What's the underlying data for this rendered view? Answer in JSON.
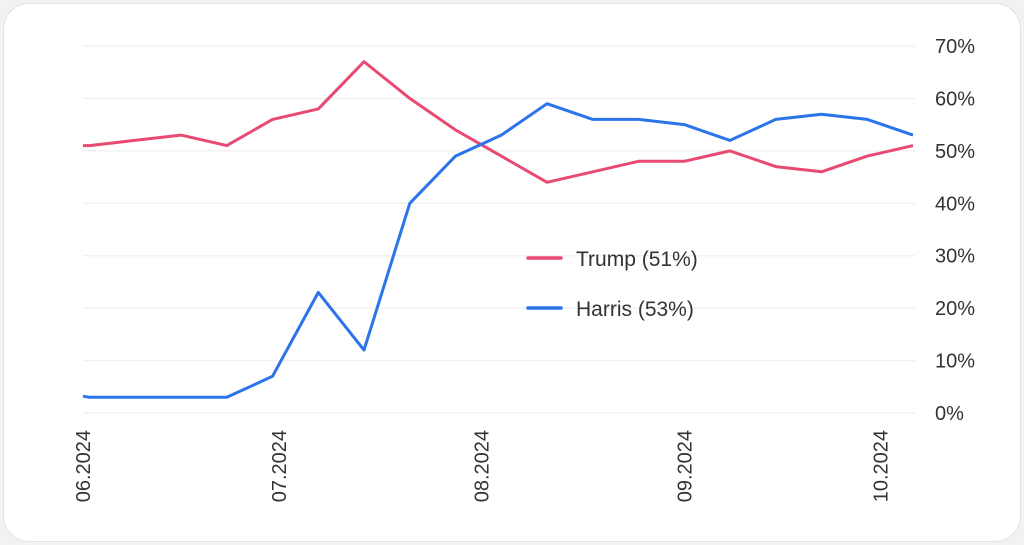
{
  "chart_data": {
    "type": "line",
    "title": "",
    "xlabel": "",
    "ylabel": "",
    "ylim": [
      0,
      70
    ],
    "y_ticks": [
      "0%",
      "10%",
      "20%",
      "30%",
      "40%",
      "50%",
      "60%",
      "70%"
    ],
    "y_tick_values": [
      0,
      10,
      20,
      30,
      40,
      50,
      60,
      70
    ],
    "x_ticks": [
      "06.2024",
      "07.2024",
      "08.2024",
      "09.2024",
      "10.2024"
    ],
    "x_tick_values": [
      "2024-06-01",
      "2024-07-01",
      "2024-08-01",
      "2024-09-01",
      "2024-10-01"
    ],
    "xlim": [
      "2024-06-01",
      "2024-10-06"
    ],
    "grid": true,
    "y_axis_side": "right",
    "legend_position": "center-right",
    "x": [
      "2024-06-01",
      "2024-06-02",
      "2024-06-16",
      "2024-06-23",
      "2024-06-30",
      "2024-07-07",
      "2024-07-14",
      "2024-07-21",
      "2024-07-28",
      "2024-08-04",
      "2024-08-11",
      "2024-08-18",
      "2024-08-25",
      "2024-09-01",
      "2024-09-08",
      "2024-09-15",
      "2024-09-22",
      "2024-09-29",
      "2024-10-06"
    ],
    "series": [
      {
        "name": "Trump (51%)",
        "color": "#e84a72",
        "values": [
          51,
          51,
          53,
          51,
          56,
          58,
          67,
          60,
          54,
          49,
          44,
          46,
          48,
          48,
          50,
          47,
          46,
          49,
          51
        ]
      },
      {
        "name": "Harris (53%)",
        "color": "#2b74ea",
        "values": [
          3.2,
          3,
          3,
          3,
          7,
          23,
          12,
          40,
          49,
          53,
          59,
          56,
          56,
          55,
          52,
          56,
          57,
          56,
          53
        ]
      }
    ]
  }
}
